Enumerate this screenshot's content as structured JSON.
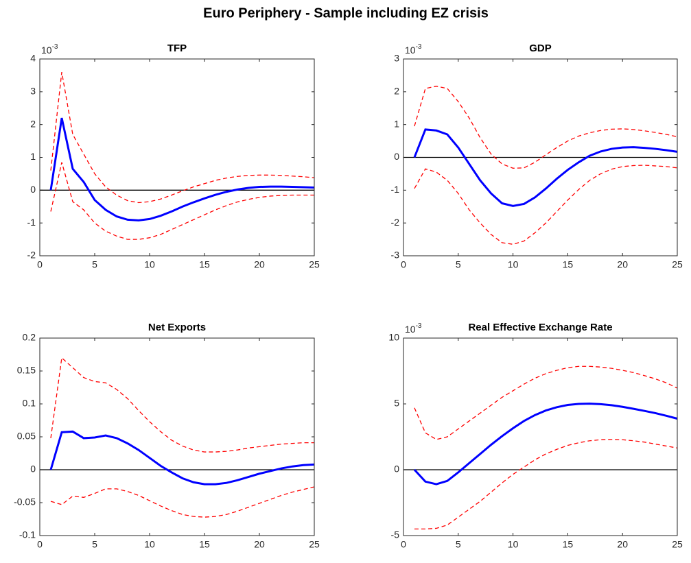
{
  "title": "Euro Periphery - Sample including EZ crisis",
  "chart_data": [
    {
      "type": "line",
      "title": "TFP",
      "y_multiplier": {
        "base": "10",
        "exponent": "-3"
      },
      "x": [
        1,
        2,
        3,
        4,
        5,
        6,
        7,
        8,
        9,
        10,
        11,
        12,
        13,
        14,
        15,
        16,
        17,
        18,
        19,
        20,
        21,
        22,
        23,
        24,
        25
      ],
      "xlim": [
        0,
        25
      ],
      "xticks": [
        0,
        5,
        10,
        15,
        20,
        25
      ],
      "ylim": [
        -2,
        4
      ],
      "yticks": [
        -2,
        -1,
        0,
        1,
        2,
        3,
        4
      ],
      "reference_line": {
        "value": 0,
        "color": "#000000"
      },
      "series": [
        {
          "color": "#ff0000",
          "style": "dashed",
          "values": [
            0.6,
            3.6,
            1.7,
            1.1,
            0.5,
            0.1,
            -0.15,
            -0.32,
            -0.38,
            -0.35,
            -0.27,
            -0.15,
            -0.02,
            0.1,
            0.2,
            0.3,
            0.37,
            0.42,
            0.45,
            0.46,
            0.46,
            0.45,
            0.43,
            0.41,
            0.38
          ]
        },
        {
          "color": "#0000ff",
          "style": "solid",
          "values": [
            0,
            2.2,
            0.65,
            0.25,
            -0.3,
            -0.6,
            -0.8,
            -0.9,
            -0.92,
            -0.88,
            -0.78,
            -0.65,
            -0.5,
            -0.37,
            -0.25,
            -0.14,
            -0.05,
            0.02,
            0.07,
            0.1,
            0.11,
            0.11,
            0.1,
            0.09,
            0.08
          ]
        },
        {
          "color": "#ff0000",
          "style": "dashed",
          "values": [
            -0.65,
            0.85,
            -0.35,
            -0.6,
            -1.0,
            -1.25,
            -1.4,
            -1.5,
            -1.5,
            -1.45,
            -1.35,
            -1.2,
            -1.05,
            -0.9,
            -0.75,
            -0.6,
            -0.47,
            -0.36,
            -0.28,
            -0.22,
            -0.18,
            -0.16,
            -0.15,
            -0.15,
            -0.15
          ]
        }
      ]
    },
    {
      "type": "line",
      "title": "GDP",
      "y_multiplier": {
        "base": "10",
        "exponent": "-3"
      },
      "x": [
        1,
        2,
        3,
        4,
        5,
        6,
        7,
        8,
        9,
        10,
        11,
        12,
        13,
        14,
        15,
        16,
        17,
        18,
        19,
        20,
        21,
        22,
        23,
        24,
        25
      ],
      "xlim": [
        0,
        25
      ],
      "xticks": [
        0,
        5,
        10,
        15,
        20,
        25
      ],
      "ylim": [
        -3,
        3
      ],
      "yticks": [
        -3,
        -2,
        -1,
        0,
        1,
        2,
        3
      ],
      "reference_line": {
        "value": 0,
        "color": "#000000"
      },
      "series": [
        {
          "color": "#ff0000",
          "style": "dashed",
          "values": [
            0.95,
            2.1,
            2.17,
            2.1,
            1.7,
            1.2,
            0.6,
            0.1,
            -0.2,
            -0.33,
            -0.32,
            -0.15,
            0.08,
            0.3,
            0.5,
            0.65,
            0.75,
            0.82,
            0.86,
            0.87,
            0.85,
            0.81,
            0.76,
            0.7,
            0.63
          ]
        },
        {
          "color": "#0000ff",
          "style": "solid",
          "values": [
            0,
            0.85,
            0.82,
            0.7,
            0.3,
            -0.2,
            -0.7,
            -1.1,
            -1.4,
            -1.48,
            -1.42,
            -1.22,
            -0.95,
            -0.65,
            -0.38,
            -0.15,
            0.05,
            0.18,
            0.26,
            0.3,
            0.31,
            0.29,
            0.26,
            0.22,
            0.17
          ]
        },
        {
          "color": "#ff0000",
          "style": "dashed",
          "values": [
            -0.95,
            -0.35,
            -0.45,
            -0.7,
            -1.1,
            -1.6,
            -2.0,
            -2.35,
            -2.6,
            -2.65,
            -2.55,
            -2.3,
            -2.0,
            -1.65,
            -1.3,
            -0.98,
            -0.7,
            -0.5,
            -0.36,
            -0.28,
            -0.25,
            -0.24,
            -0.26,
            -0.28,
            -0.32
          ]
        }
      ]
    },
    {
      "type": "line",
      "title": "Net Exports",
      "x": [
        1,
        2,
        3,
        4,
        5,
        6,
        7,
        8,
        9,
        10,
        11,
        12,
        13,
        14,
        15,
        16,
        17,
        18,
        19,
        20,
        21,
        22,
        23,
        24,
        25
      ],
      "xlim": [
        0,
        25
      ],
      "xticks": [
        0,
        5,
        10,
        15,
        20,
        25
      ],
      "ylim": [
        -0.1,
        0.2
      ],
      "yticks": [
        -0.1,
        -0.05,
        0,
        0.05,
        0.1,
        0.15,
        0.2
      ],
      "reference_line": {
        "value": 0,
        "color": "#000000"
      },
      "series": [
        {
          "color": "#ff0000",
          "style": "dashed",
          "values": [
            0.048,
            0.17,
            0.155,
            0.14,
            0.134,
            0.132,
            0.122,
            0.108,
            0.09,
            0.073,
            0.058,
            0.045,
            0.036,
            0.03,
            0.027,
            0.027,
            0.028,
            0.03,
            0.033,
            0.035,
            0.037,
            0.039,
            0.04,
            0.041,
            0.041
          ]
        },
        {
          "color": "#0000ff",
          "style": "solid",
          "values": [
            0,
            0.057,
            0.058,
            0.048,
            0.049,
            0.052,
            0.048,
            0.04,
            0.03,
            0.018,
            0.006,
            -0.004,
            -0.013,
            -0.019,
            -0.022,
            -0.022,
            -0.02,
            -0.016,
            -0.011,
            -0.006,
            -0.002,
            0.002,
            0.005,
            0.007,
            0.008
          ]
        },
        {
          "color": "#ff0000",
          "style": "dashed",
          "values": [
            -0.048,
            -0.053,
            -0.04,
            -0.042,
            -0.036,
            -0.029,
            -0.029,
            -0.033,
            -0.039,
            -0.047,
            -0.055,
            -0.062,
            -0.068,
            -0.071,
            -0.072,
            -0.071,
            -0.068,
            -0.063,
            -0.057,
            -0.051,
            -0.045,
            -0.039,
            -0.034,
            -0.03,
            -0.026
          ]
        }
      ]
    },
    {
      "type": "line",
      "title": "Real Effective Exchange Rate",
      "y_multiplier": {
        "base": "10",
        "exponent": "-3"
      },
      "x": [
        1,
        2,
        3,
        4,
        5,
        6,
        7,
        8,
        9,
        10,
        11,
        12,
        13,
        14,
        15,
        16,
        17,
        18,
        19,
        20,
        21,
        22,
        23,
        24,
        25
      ],
      "xlim": [
        0,
        25
      ],
      "xticks": [
        0,
        5,
        10,
        15,
        20,
        25
      ],
      "ylim": [
        -5,
        10
      ],
      "yticks": [
        -5,
        0,
        5,
        10
      ],
      "reference_line": {
        "value": 0,
        "color": "#000000"
      },
      "series": [
        {
          "color": "#ff0000",
          "style": "dashed",
          "values": [
            4.7,
            2.8,
            2.3,
            2.5,
            3.1,
            3.7,
            4.3,
            4.9,
            5.5,
            6.0,
            6.5,
            6.95,
            7.3,
            7.55,
            7.75,
            7.85,
            7.85,
            7.8,
            7.7,
            7.55,
            7.38,
            7.15,
            6.9,
            6.6,
            6.2
          ]
        },
        {
          "color": "#0000ff",
          "style": "solid",
          "values": [
            0,
            -0.9,
            -1.1,
            -0.85,
            -0.2,
            0.5,
            1.2,
            1.9,
            2.55,
            3.15,
            3.7,
            4.15,
            4.5,
            4.75,
            4.92,
            5.0,
            5.02,
            4.98,
            4.9,
            4.78,
            4.63,
            4.47,
            4.3,
            4.1,
            3.88
          ]
        },
        {
          "color": "#ff0000",
          "style": "dashed",
          "values": [
            -4.5,
            -4.5,
            -4.45,
            -4.2,
            -3.6,
            -3.0,
            -2.4,
            -1.7,
            -1.0,
            -0.35,
            0.2,
            0.75,
            1.2,
            1.55,
            1.85,
            2.05,
            2.2,
            2.28,
            2.3,
            2.28,
            2.2,
            2.1,
            1.95,
            1.8,
            1.65
          ]
        }
      ]
    }
  ]
}
